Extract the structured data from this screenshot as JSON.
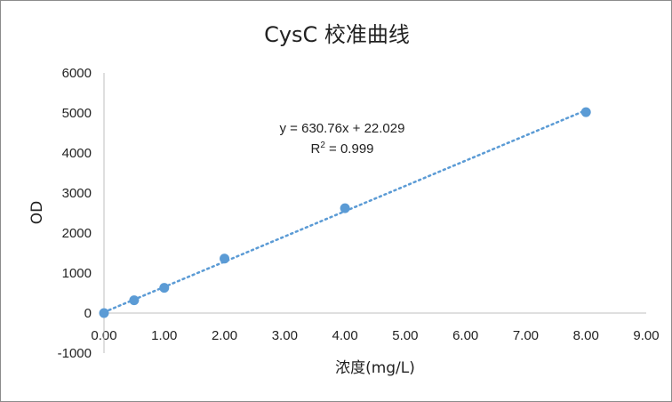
{
  "chart_data": {
    "type": "scatter",
    "title": "CysC 校准曲线",
    "xlabel": "浓度(mg/L)",
    "ylabel": "OD",
    "xlim": [
      0,
      9
    ],
    "ylim": [
      -1000,
      6000
    ],
    "x_ticks": [
      "0.00",
      "1.00",
      "2.00",
      "3.00",
      "4.00",
      "5.00",
      "6.00",
      "7.00",
      "8.00",
      "9.00"
    ],
    "y_ticks": [
      "-1000",
      "0",
      "1000",
      "2000",
      "3000",
      "4000",
      "5000",
      "6000"
    ],
    "grid": false,
    "legend": "none",
    "series": [
      {
        "x": [
          0,
          0.5,
          1,
          2,
          4,
          8
        ],
        "y": [
          0,
          320,
          630,
          1360,
          2620,
          5020
        ],
        "color": "#5b9bd5"
      }
    ],
    "trendline": {
      "type": "linear",
      "style": "dotted",
      "slope": 630.76,
      "intercept": 22.029,
      "x_range": [
        0,
        8
      ],
      "color": "#5b9bd5",
      "equation": "y = 630.76x + 22.029",
      "r2_prefix": "R",
      "r2_power": "2",
      "r2_value": " = 0.999"
    }
  }
}
